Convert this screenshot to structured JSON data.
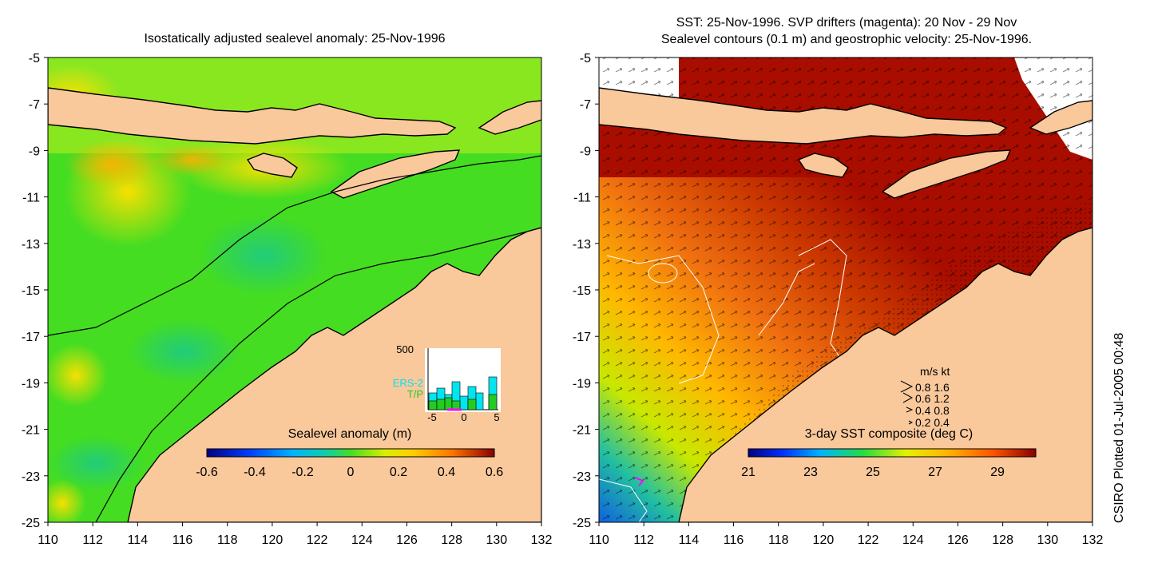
{
  "left_panel": {
    "title": "Isostatically adjusted sealevel anomaly: 25-Nov-1996",
    "colorbar_label": "Sealevel anomaly (m)",
    "colorbar_ticks": [
      "-0.6",
      "-0.4",
      "-0.2",
      "0",
      "0.2",
      "0.4",
      "0.6"
    ],
    "inset": {
      "ymax_label": "500",
      "legend": [
        "ERS-2",
        "T/P"
      ],
      "x_ticks": [
        "-5",
        "0",
        "5"
      ],
      "colors": {
        "ers2": "#00e5ee",
        "tp": "#22cc22",
        "marker": "#ff00ff"
      }
    }
  },
  "right_panel": {
    "title_line1": "SST: 25-Nov-1996. SVP drifters (magenta): 20 Nov - 29 Nov",
    "title_line2": "Sealevel contours (0.1 m) and geostrophic velocity: 25-Nov-1996.",
    "colorbar_label": "3-day SST composite (deg C)",
    "colorbar_ticks": [
      "21",
      "23",
      "25",
      "27",
      "29"
    ],
    "velocity_legend": {
      "header": "m/s  kt",
      "rows": [
        "0.8  1.6",
        "0.6  1.2",
        "0.4  0.8",
        "0.2  0.4"
      ]
    }
  },
  "axes": {
    "y_ticks": [
      "-5",
      "-7",
      "-9",
      "-11",
      "-13",
      "-15",
      "-17",
      "-19",
      "-21",
      "-23",
      "-25"
    ],
    "x_ticks": [
      "110",
      "112",
      "114",
      "116",
      "118",
      "120",
      "122",
      "124",
      "126",
      "128",
      "130",
      "132"
    ]
  },
  "credit": "CSIRO Plotted 01-Jul-2005 00:48",
  "colors": {
    "land": "#f9c89b",
    "sea_green": "#44dd22",
    "sst_red": "#a80d00"
  }
}
